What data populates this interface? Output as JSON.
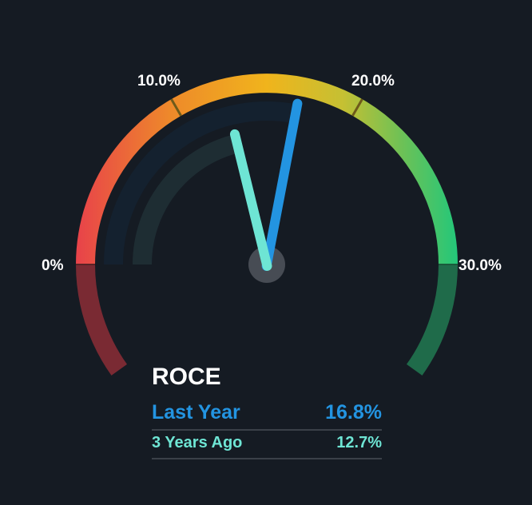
{
  "chart_data": {
    "type": "gauge",
    "title": "ROCE",
    "range": [
      0,
      30
    ],
    "tick_labels": [
      "0%",
      "10.0%",
      "20.0%",
      "30.0%"
    ],
    "tick_values": [
      0,
      10,
      20,
      30
    ],
    "series": [
      {
        "name": "Last Year",
        "value": 16.8,
        "label": "16.8%",
        "color": "#2394e1"
      },
      {
        "name": "3 Years Ago",
        "value": 12.7,
        "label": "12.7%",
        "color": "#6ee5d4"
      }
    ],
    "gradient_colors": [
      "#e8424a",
      "#ee8a2a",
      "#f0b41c",
      "#c5c033",
      "#6fc155",
      "#23c77a"
    ]
  }
}
